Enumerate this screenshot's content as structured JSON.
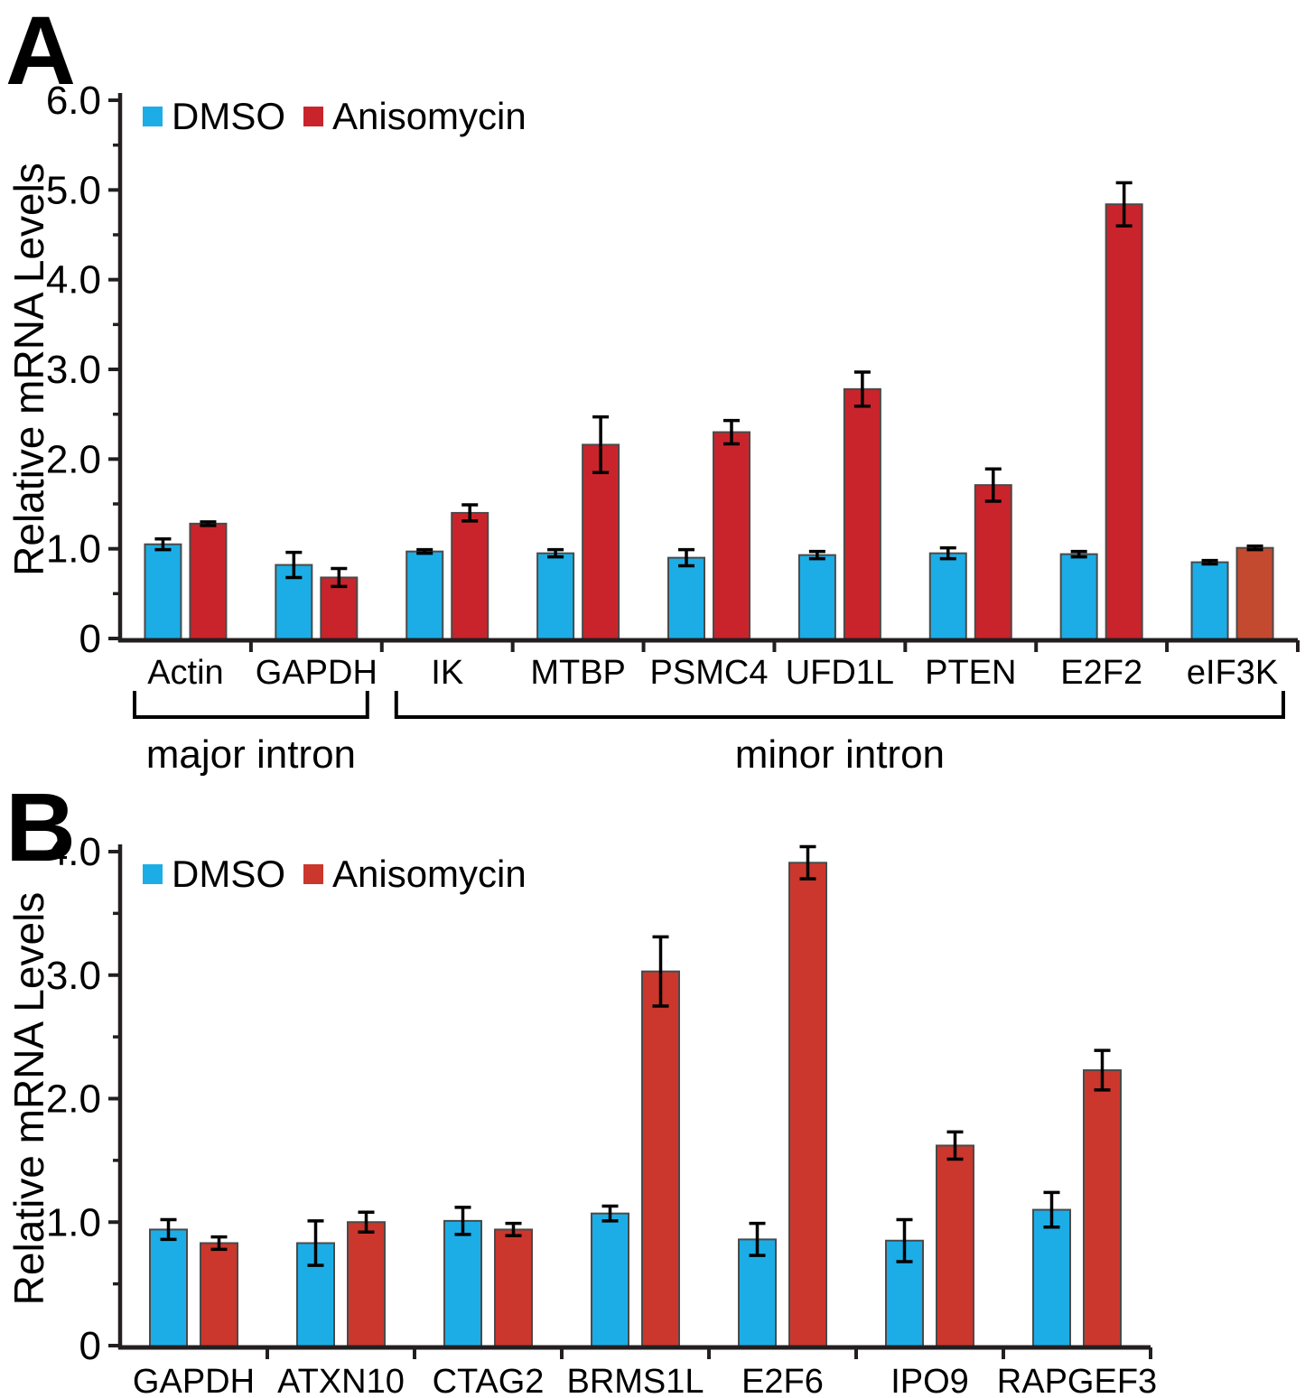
{
  "colors": {
    "dmso_blue": "#1CADE6",
    "anisomycin_red_a": "#C9242B",
    "anisomycin_red_b": "#CB372C",
    "eif3k_red_override": "#C34A2E",
    "axis_black": "#231F20",
    "bar_outline": "#4A4A4A"
  },
  "chart_data": [
    {
      "type": "bar",
      "panel_label": "A",
      "title": "",
      "xlabel": "",
      "ylabel": "Relative mRNA Levels",
      "ylim": [
        0,
        6.0
      ],
      "ytick_labels": [
        "0",
        "1.0",
        "2.0",
        "3.0",
        "4.0",
        "5.0",
        "6.0"
      ],
      "minor_tick_step": 0.5,
      "grid": false,
      "legend_position": "top-left-inside",
      "categories": [
        "Actin",
        "GAPDH",
        "IK",
        "MTBP",
        "PSMC4",
        "UFD1L",
        "PTEN",
        "E2F2",
        "eIF3K"
      ],
      "series": [
        {
          "name": "DMSO",
          "color": "#1CADE6",
          "values": [
            1.05,
            0.82,
            0.97,
            0.95,
            0.9,
            0.93,
            0.95,
            0.94,
            0.85
          ],
          "errors": [
            0.06,
            0.14,
            0.02,
            0.04,
            0.09,
            0.04,
            0.06,
            0.03,
            0.02
          ]
        },
        {
          "name": "Anisomycin",
          "color": "#C9242B",
          "values": [
            1.28,
            0.68,
            1.4,
            2.16,
            2.3,
            2.78,
            1.71,
            4.84,
            1.01
          ],
          "errors": [
            0.02,
            0.1,
            0.09,
            0.31,
            0.13,
            0.19,
            0.18,
            0.24,
            0.02
          ],
          "bar_color_overrides": {
            "8": "#C34A2E"
          }
        }
      ],
      "group_brackets": [
        {
          "label": "major intron",
          "start": 0,
          "end": 1
        },
        {
          "label": "minor intron",
          "start": 2,
          "end": 8
        }
      ]
    },
    {
      "type": "bar",
      "panel_label": "B",
      "title": "",
      "xlabel": "",
      "ylabel": "Relative mRNA Levels",
      "ylim": [
        0,
        4.0
      ],
      "ytick_labels": [
        "0",
        "1.0",
        "2.0",
        "3.0",
        "4.0"
      ],
      "minor_tick_step": 0.5,
      "grid": false,
      "legend_position": "top-left-inside",
      "categories": [
        "GAPDH",
        "ATXN10",
        "CTAG2",
        "BRMS1L",
        "E2F6",
        "IPO9",
        "RAPGEF3"
      ],
      "series": [
        {
          "name": "DMSO",
          "color": "#1CADE6",
          "values": [
            0.94,
            0.83,
            1.01,
            1.07,
            0.86,
            0.85,
            1.1
          ],
          "errors": [
            0.08,
            0.18,
            0.11,
            0.06,
            0.13,
            0.17,
            0.14
          ]
        },
        {
          "name": "Anisomycin",
          "color": "#CB372C",
          "values": [
            0.83,
            1.0,
            0.94,
            3.03,
            3.91,
            1.62,
            2.23
          ],
          "errors": [
            0.05,
            0.08,
            0.05,
            0.28,
            0.13,
            0.11,
            0.16
          ]
        }
      ],
      "group_brackets": []
    }
  ]
}
